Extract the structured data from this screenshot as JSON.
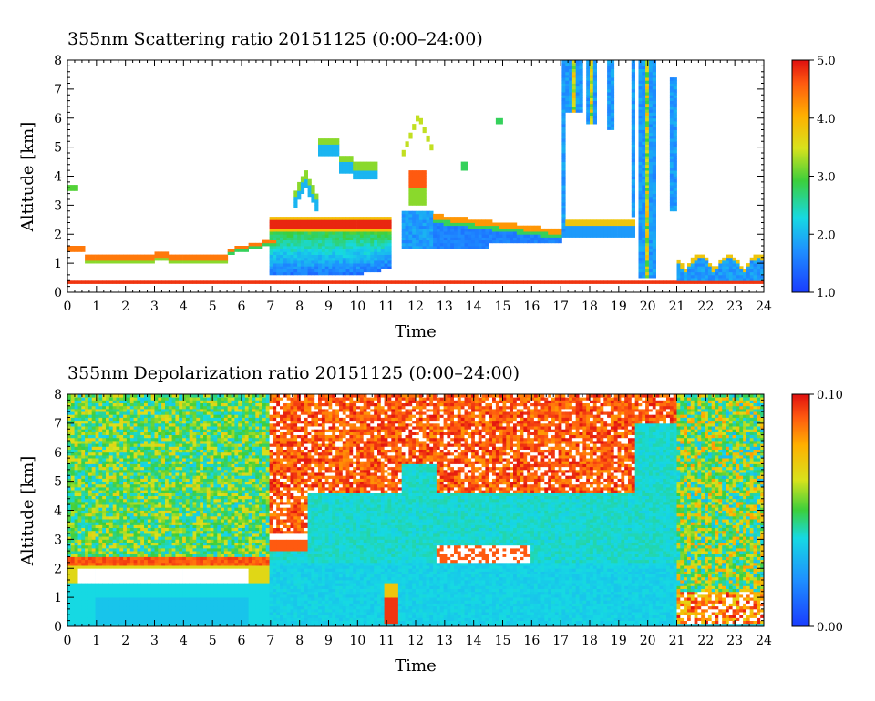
{
  "chart_data": [
    {
      "type": "heatmap",
      "title": "355nm Scattering ratio  20151125 (0:00–24:00)",
      "xlabel": "Time",
      "ylabel": "Altitude [km]",
      "x_ticks": [
        "0",
        "1",
        "2",
        "3",
        "4",
        "5",
        "6",
        "7",
        "8",
        "9",
        "10",
        "11",
        "12",
        "13",
        "14",
        "15",
        "16",
        "17",
        "18",
        "19",
        "20",
        "21",
        "22",
        "23",
        "24"
      ],
      "y_ticks": [
        "0",
        "1",
        "2",
        "3",
        "4",
        "5",
        "6",
        "7",
        "8"
      ],
      "xlim": [
        0,
        24
      ],
      "ylim": [
        0,
        8
      ],
      "colorbar": {
        "range": [
          1.0,
          5.0
        ],
        "tick_labels": [
          "1.0",
          "2.0",
          "3.0",
          "4.0",
          "5.0"
        ],
        "tick_values": [
          1.0,
          2.0,
          3.0,
          4.0,
          5.0
        ],
        "colormap": "rainbow blue-to-red"
      },
      "features": [
        {
          "x_range": [
            0.0,
            5.5
          ],
          "alt_range": [
            0.9,
            1.6
          ],
          "level": "low aerosol layer, ratio ~2-5"
        },
        {
          "x_range": [
            5.5,
            7.2
          ],
          "alt_range": [
            1.3,
            1.7
          ],
          "level": "thin layer, ratio ~3"
        },
        {
          "x_range": [
            7.0,
            11.2
          ],
          "alt_range": [
            0.5,
            5.5
          ],
          "level": "cloud, ratio 1.5->5"
        },
        {
          "x_range": [
            11.5,
            17.0
          ],
          "alt_range": [
            1.5,
            6.3
          ],
          "level": "cloud, ratio ~1.5-5"
        },
        {
          "x_range": [
            17.0,
            21.0
          ],
          "alt_range": [
            0.5,
            8.0
          ],
          "level": "vertical streaks, ratio ~1.5-5"
        },
        {
          "x_range": [
            21.0,
            24.0
          ],
          "alt_range": [
            0.2,
            1.4
          ],
          "level": "boundary layer, ratio ~1.5-5"
        }
      ]
    },
    {
      "type": "heatmap",
      "title": "355nm Depolarization ratio  20151125 (0:00–24:00)",
      "xlabel": "Time",
      "ylabel": "Altitude [km]",
      "x_ticks": [
        "0",
        "1",
        "2",
        "3",
        "4",
        "5",
        "6",
        "7",
        "8",
        "9",
        "10",
        "11",
        "12",
        "13",
        "14",
        "15",
        "16",
        "17",
        "18",
        "19",
        "20",
        "21",
        "22",
        "23",
        "24"
      ],
      "y_ticks": [
        "0",
        "1",
        "2",
        "3",
        "4",
        "5",
        "6",
        "7",
        "8"
      ],
      "xlim": [
        0,
        24
      ],
      "ylim": [
        0,
        8
      ],
      "colorbar": {
        "range": [
          0.0,
          0.1
        ],
        "tick_labels": [
          "0.00",
          "0.10"
        ],
        "tick_values": [
          0.0,
          0.1
        ],
        "colormap": "rainbow blue-to-red"
      },
      "features": [
        {
          "x_range": [
            0.0,
            7.0
          ],
          "alt_range": [
            2.5,
            8.0
          ],
          "level": "noisy background ~0.03-0.06"
        },
        {
          "x_range": [
            0.0,
            7.0
          ],
          "alt_range": [
            0.0,
            1.5
          ],
          "level": "low depol ~0.02"
        },
        {
          "x_range": [
            7.0,
            21.0
          ],
          "alt_range": [
            0.0,
            2.2
          ],
          "level": "low depol ~0.02"
        },
        {
          "x_range": [
            7.0,
            19.0
          ],
          "alt_range": [
            4.5,
            8.0
          ],
          "level": "high depol ~0.08-0.1 (ice)"
        },
        {
          "x_range": [
            10.9,
            11.3
          ],
          "alt_range": [
            0.0,
            1.5
          ],
          "level": "high depol ~0.1"
        },
        {
          "x_range": [
            21.0,
            24.0
          ],
          "alt_range": [
            0.0,
            8.0
          ],
          "level": "noisy ~0.03-0.1"
        }
      ]
    }
  ]
}
